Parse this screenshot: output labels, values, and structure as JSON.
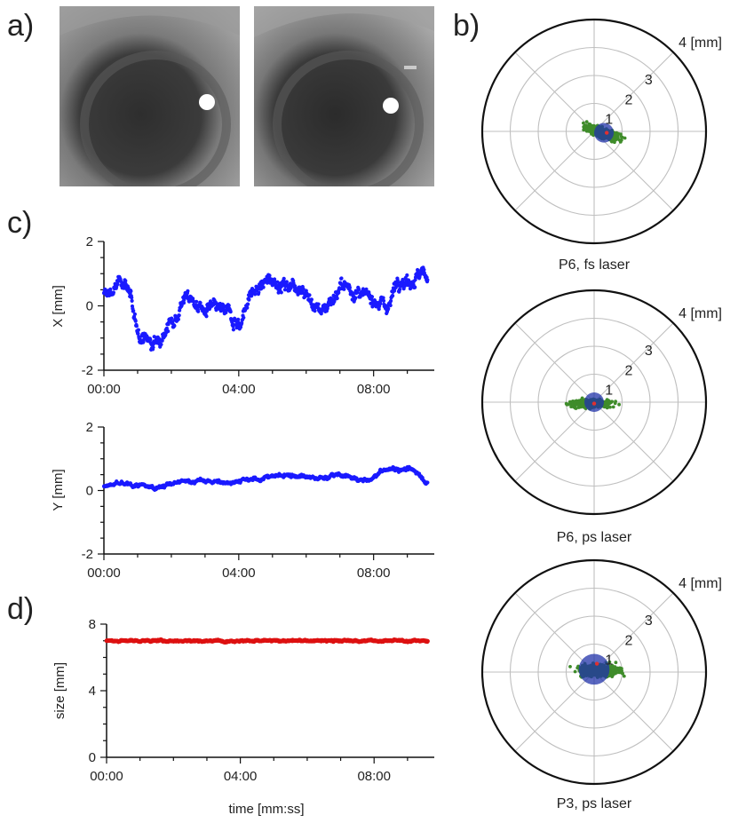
{
  "panel_labels": {
    "a": "a)",
    "b": "b)",
    "c": "c)",
    "d": "d)"
  },
  "colors": {
    "x_series": "#1a1aff",
    "y_series": "#1a1aff",
    "size_series": "#dd1111",
    "polar_scatter": "#3f8c2a",
    "polar_center": "#2233aa",
    "polar_center_dot": "#e03030",
    "grid": "#bfbfbf",
    "axis": "#111111"
  },
  "images": [
    {
      "name": "eye-image-left",
      "description": "grayscale eye with corneal reflection"
    },
    {
      "name": "eye-image-right",
      "description": "grayscale eye with corneal reflection"
    }
  ],
  "chart_data": [
    {
      "type": "scatter",
      "panel": "c",
      "ylabel": "X [mm]",
      "xlabel": "",
      "xlim": [
        0,
        9.8
      ],
      "ylim": [
        -2,
        2
      ],
      "xticks": [
        "00:00",
        "04:00",
        "08:00"
      ],
      "xtick_values": [
        0,
        4,
        8
      ],
      "yticks": [
        "-2",
        "0",
        "2"
      ],
      "ytick_values": [
        -2,
        0,
        2
      ],
      "keypoints_x": [
        0.0,
        0.3,
        0.55,
        0.7,
        0.8,
        0.9,
        1.1,
        1.3,
        1.45,
        1.7,
        2.0,
        2.2,
        2.4,
        2.7,
        3.0,
        3.3,
        3.6,
        3.9,
        4.05,
        4.2,
        4.4,
        4.7,
        5.0,
        5.3,
        5.6,
        5.9,
        6.2,
        6.5,
        6.8,
        7.1,
        7.4,
        7.7,
        8.0,
        8.3,
        8.5,
        8.7,
        9.0,
        9.3,
        9.6
      ],
      "keypoints_y": [
        0.3,
        0.5,
        0.8,
        0.7,
        0.2,
        -0.6,
        -0.9,
        -1.0,
        -1.3,
        -0.8,
        -0.5,
        -0.2,
        0.3,
        0.1,
        -0.2,
        -0.1,
        -0.2,
        -0.4,
        -0.6,
        0.0,
        0.4,
        0.6,
        0.9,
        0.6,
        0.7,
        0.6,
        0.0,
        -0.1,
        0.3,
        0.6,
        0.5,
        0.2,
        0.3,
        0.0,
        0.1,
        0.9,
        0.8,
        0.9,
        1.0
      ]
    },
    {
      "type": "scatter",
      "panel": "c",
      "ylabel": "Y [mm]",
      "xlabel": "",
      "xlim": [
        0,
        9.8
      ],
      "ylim": [
        -2,
        2
      ],
      "xticks": [
        "00:00",
        "04:00",
        "08:00"
      ],
      "xtick_values": [
        0,
        4,
        8
      ],
      "yticks": [
        "-2",
        "0",
        "2"
      ],
      "ytick_values": [
        -2,
        0,
        2
      ],
      "keypoints_x": [
        0.0,
        0.5,
        1.0,
        1.5,
        2.0,
        2.5,
        3.0,
        3.5,
        4.0,
        4.5,
        5.0,
        5.5,
        6.0,
        6.5,
        7.0,
        7.5,
        7.9,
        8.2,
        8.6,
        9.0,
        9.3,
        9.6
      ],
      "keypoints_y": [
        0.15,
        0.2,
        0.15,
        0.1,
        0.2,
        0.3,
        0.3,
        0.25,
        0.3,
        0.35,
        0.45,
        0.5,
        0.4,
        0.4,
        0.5,
        0.35,
        0.3,
        0.6,
        0.7,
        0.65,
        0.6,
        0.2
      ]
    },
    {
      "type": "scatter",
      "panel": "d",
      "ylabel": "size [mm]",
      "xlabel": "time [mm:ss]",
      "xlim": [
        0,
        9.8
      ],
      "ylim": [
        0,
        8
      ],
      "xticks": [
        "00:00",
        "04:00",
        "08:00"
      ],
      "xtick_values": [
        0,
        4,
        8
      ],
      "yticks": [
        "0",
        "4",
        "8"
      ],
      "ytick_values": [
        0,
        4,
        8
      ],
      "keypoints_x": [
        0.0,
        9.6
      ],
      "keypoints_y": [
        7.0,
        7.0
      ]
    },
    {
      "type": "scatter",
      "panel": "b",
      "polar": true,
      "title": "P6, fs laser",
      "radial_labels": [
        "1",
        "2",
        "3",
        "4 [mm]"
      ],
      "rmax": 4,
      "cloud_center": [
        0.3,
        -0.05
      ],
      "cloud_spread": [
        0.95,
        0.25
      ],
      "cloud_tilt_deg": -20,
      "disk_radius": 0.35,
      "disk_center": [
        0.35,
        -0.05
      ],
      "dot_center": [
        0.45,
        -0.05
      ]
    },
    {
      "type": "scatter",
      "panel": "b",
      "polar": true,
      "title": "P6, ps laser",
      "radial_labels": [
        "1",
        "2",
        "3",
        "4 [mm]"
      ],
      "rmax": 4,
      "cloud_center": [
        -0.1,
        -0.05
      ],
      "cloud_spread": [
        1.1,
        0.22
      ],
      "cloud_tilt_deg": 0,
      "disk_radius": 0.35,
      "disk_center": [
        0.0,
        0.0
      ],
      "dot_center": [
        0.0,
        -0.05
      ]
    },
    {
      "type": "scatter",
      "panel": "b",
      "polar": true,
      "title": "P3, ps laser",
      "radial_labels": [
        "1",
        "2",
        "3",
        "4 [mm]"
      ],
      "rmax": 4,
      "cloud_center": [
        0.2,
        0.05
      ],
      "cloud_spread": [
        1.1,
        0.32
      ],
      "cloud_tilt_deg": 0,
      "disk_radius": 0.55,
      "disk_center": [
        0.0,
        0.1
      ],
      "dot_center": [
        0.1,
        0.3
      ]
    }
  ]
}
